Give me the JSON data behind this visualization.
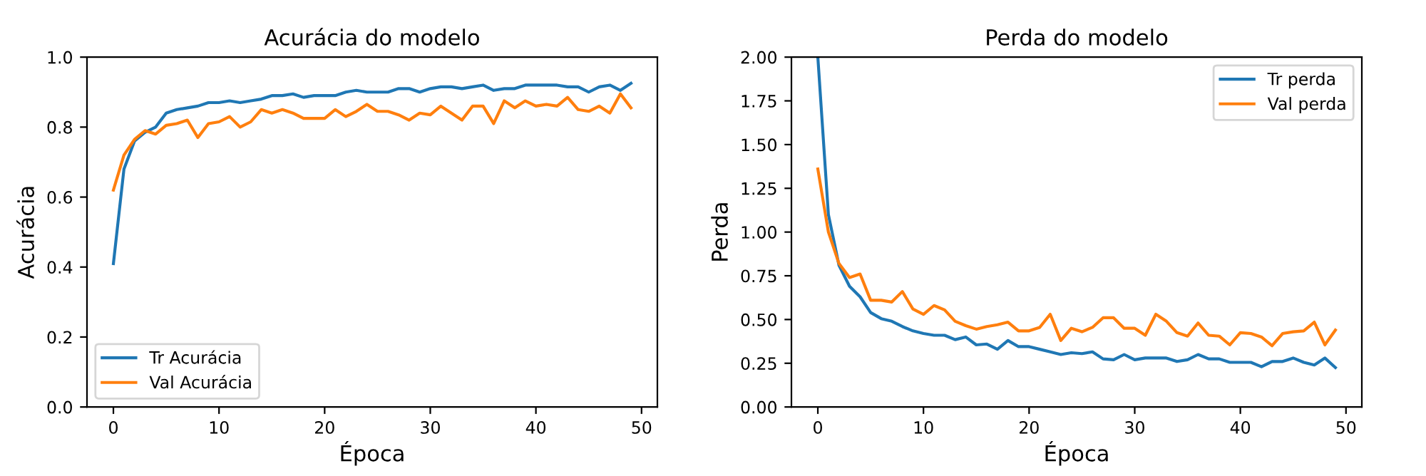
{
  "chart_data": [
    {
      "type": "line",
      "title": "Acurácia do modelo",
      "xlabel": "Época",
      "ylabel": "Acurácia",
      "x": [
        0,
        1,
        2,
        3,
        4,
        5,
        6,
        7,
        8,
        9,
        10,
        11,
        12,
        13,
        14,
        15,
        16,
        17,
        18,
        19,
        20,
        21,
        22,
        23,
        24,
        25,
        26,
        27,
        28,
        29,
        30,
        31,
        32,
        33,
        34,
        35,
        36,
        37,
        38,
        39,
        40,
        41,
        42,
        43,
        44,
        45,
        46,
        47,
        48,
        49
      ],
      "series": [
        {
          "name": "Tr Acurácia",
          "color": "#1f77b4",
          "values": [
            0.41,
            0.68,
            0.76,
            0.785,
            0.8,
            0.84,
            0.85,
            0.855,
            0.86,
            0.87,
            0.87,
            0.875,
            0.87,
            0.875,
            0.88,
            0.89,
            0.89,
            0.895,
            0.885,
            0.89,
            0.89,
            0.89,
            0.9,
            0.905,
            0.9,
            0.9,
            0.9,
            0.91,
            0.91,
            0.9,
            0.91,
            0.915,
            0.915,
            0.91,
            0.915,
            0.92,
            0.905,
            0.91,
            0.91,
            0.92,
            0.92,
            0.92,
            0.92,
            0.915,
            0.915,
            0.9,
            0.915,
            0.92,
            0.905,
            0.925
          ]
        },
        {
          "name": "Val Acurácia",
          "color": "#ff7f0e",
          "values": [
            0.62,
            0.72,
            0.765,
            0.79,
            0.78,
            0.805,
            0.81,
            0.82,
            0.77,
            0.81,
            0.815,
            0.83,
            0.8,
            0.815,
            0.85,
            0.84,
            0.85,
            0.84,
            0.825,
            0.825,
            0.825,
            0.85,
            0.83,
            0.845,
            0.865,
            0.845,
            0.845,
            0.835,
            0.82,
            0.84,
            0.835,
            0.86,
            0.84,
            0.82,
            0.86,
            0.86,
            0.81,
            0.875,
            0.855,
            0.875,
            0.86,
            0.865,
            0.86,
            0.885,
            0.85,
            0.845,
            0.86,
            0.84,
            0.895,
            0.855
          ]
        }
      ],
      "xlim": [
        -2.5,
        51.5
      ],
      "xticks": [
        0,
        10,
        20,
        30,
        40,
        50
      ],
      "ylim": [
        0,
        1
      ],
      "yticks": [
        {
          "value": 0,
          "label": "0.0"
        },
        {
          "value": 0.2,
          "label": "0.2"
        },
        {
          "value": 0.4,
          "label": "0.4"
        },
        {
          "value": 0.6,
          "label": "0.6"
        },
        {
          "value": 0.8,
          "label": "0.8"
        },
        {
          "value": 1,
          "label": "1.0"
        }
      ],
      "legend": "lower left",
      "grid": false
    },
    {
      "type": "line",
      "title": "Perda do modelo",
      "xlabel": "Época",
      "ylabel": "Perda",
      "x": [
        0,
        1,
        2,
        3,
        4,
        5,
        6,
        7,
        8,
        9,
        10,
        11,
        12,
        13,
        14,
        15,
        16,
        17,
        18,
        19,
        20,
        21,
        22,
        23,
        24,
        25,
        26,
        27,
        28,
        29,
        30,
        31,
        32,
        33,
        34,
        35,
        36,
        37,
        38,
        39,
        40,
        41,
        42,
        43,
        44,
        45,
        46,
        47,
        48,
        49
      ],
      "series": [
        {
          "name": "Tr perda",
          "color": "#1f77b4",
          "values": [
            2.0,
            1.1,
            0.81,
            0.69,
            0.63,
            0.54,
            0.505,
            0.49,
            0.46,
            0.435,
            0.42,
            0.41,
            0.41,
            0.385,
            0.4,
            0.355,
            0.36,
            0.33,
            0.38,
            0.345,
            0.345,
            0.33,
            0.315,
            0.3,
            0.31,
            0.305,
            0.315,
            0.275,
            0.27,
            0.3,
            0.27,
            0.28,
            0.28,
            0.28,
            0.26,
            0.27,
            0.3,
            0.275,
            0.275,
            0.255,
            0.255,
            0.255,
            0.23,
            0.26,
            0.26,
            0.28,
            0.255,
            0.24,
            0.28,
            0.225
          ]
        },
        {
          "name": "Val perda",
          "color": "#ff7f0e",
          "values": [
            1.36,
            1.0,
            0.82,
            0.74,
            0.76,
            0.61,
            0.61,
            0.6,
            0.66,
            0.56,
            0.53,
            0.58,
            0.555,
            0.49,
            0.465,
            0.445,
            0.46,
            0.47,
            0.485,
            0.435,
            0.435,
            0.455,
            0.53,
            0.38,
            0.45,
            0.43,
            0.455,
            0.51,
            0.51,
            0.45,
            0.45,
            0.41,
            0.53,
            0.49,
            0.425,
            0.405,
            0.48,
            0.41,
            0.405,
            0.355,
            0.425,
            0.42,
            0.4,
            0.35,
            0.42,
            0.43,
            0.435,
            0.485,
            0.355,
            0.44
          ]
        }
      ],
      "xlim": [
        -2.5,
        51.5
      ],
      "xticks": [
        0,
        10,
        20,
        30,
        40,
        50
      ],
      "ylim": [
        0,
        2
      ],
      "yticks": [
        {
          "value": 0,
          "label": "0.00"
        },
        {
          "value": 0.25,
          "label": "0.25"
        },
        {
          "value": 0.5,
          "label": "0.50"
        },
        {
          "value": 0.75,
          "label": "0.75"
        },
        {
          "value": 1,
          "label": "1.00"
        },
        {
          "value": 1.25,
          "label": "1.25"
        },
        {
          "value": 1.5,
          "label": "1.50"
        },
        {
          "value": 1.75,
          "label": "1.75"
        },
        {
          "value": 2,
          "label": "2.00"
        }
      ],
      "legend": "upper right",
      "grid": false
    }
  ]
}
